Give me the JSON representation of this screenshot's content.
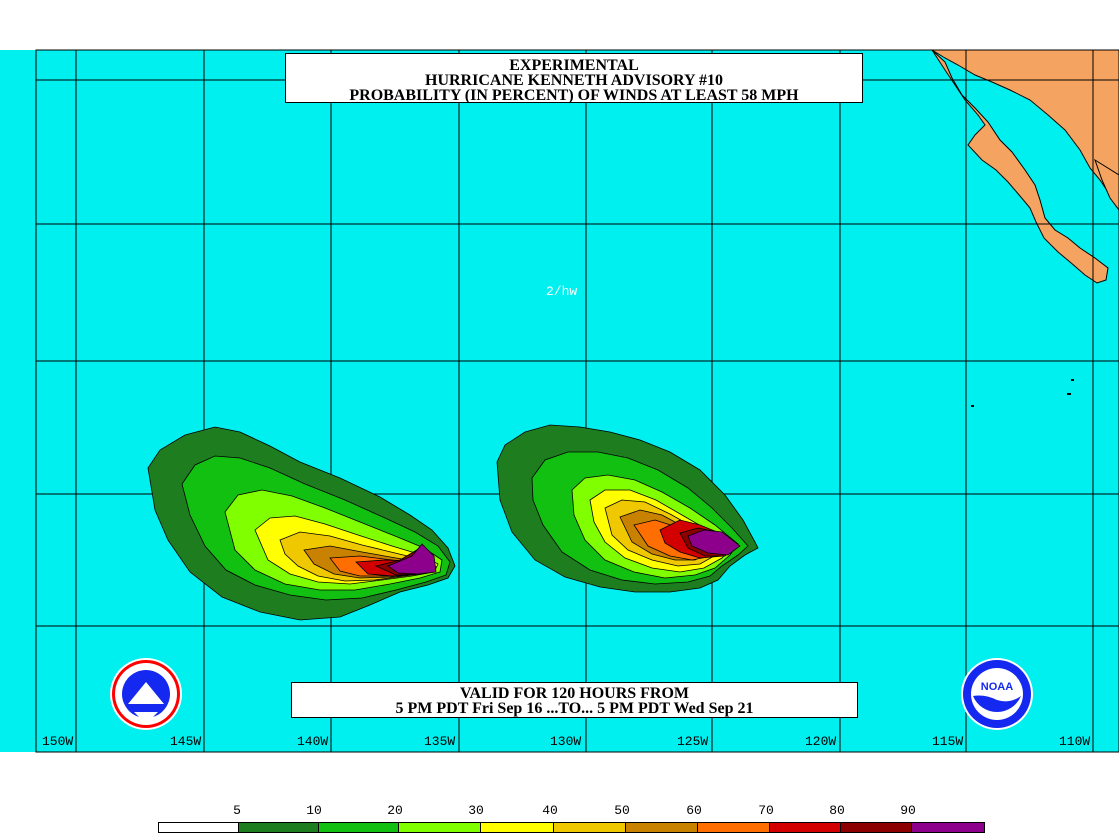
{
  "title": {
    "line1": "EXPERIMENTAL",
    "line2": "HURRICANE KENNETH ADVISORY #10",
    "line3": "PROBABILITY (IN PERCENT) OF WINDS AT LEAST 58 MPH"
  },
  "valid": {
    "line1": "VALID FOR 120 HOURS FROM",
    "line2": "5 PM PDT Fri Sep 16 ...TO... 5 PM PDT Wed Sep 21"
  },
  "map_tag": "2/hw",
  "longitudes": [
    "150W",
    "145W",
    "140W",
    "135W",
    "130W",
    "125W",
    "120W",
    "115W",
    "110W"
  ],
  "legend": {
    "labels": [
      "5",
      "10",
      "20",
      "30",
      "40",
      "50",
      "60",
      "70",
      "80",
      "90"
    ],
    "colors": [
      "#ffffff",
      "#1e7d1e",
      "#12c012",
      "#80ff00",
      "#ffff00",
      "#f0c800",
      "#c88200",
      "#ff6e00",
      "#d20000",
      "#8c0000",
      "#8c008c"
    ]
  },
  "colors": {
    "ocean": "#00f0f0",
    "land": "#f4a460",
    "p5": "#1e7d1e",
    "p10": "#12c012",
    "p20": "#80ff00",
    "p30": "#ffff00",
    "p40": "#f0c800",
    "p50": "#c88200",
    "p60": "#ff6e00",
    "p70": "#d20000",
    "p80": "#8c0000",
    "p90": "#8c008c"
  },
  "logos": {
    "left": "NATIONAL WEATHER SERVICE",
    "right": "NOAA"
  }
}
